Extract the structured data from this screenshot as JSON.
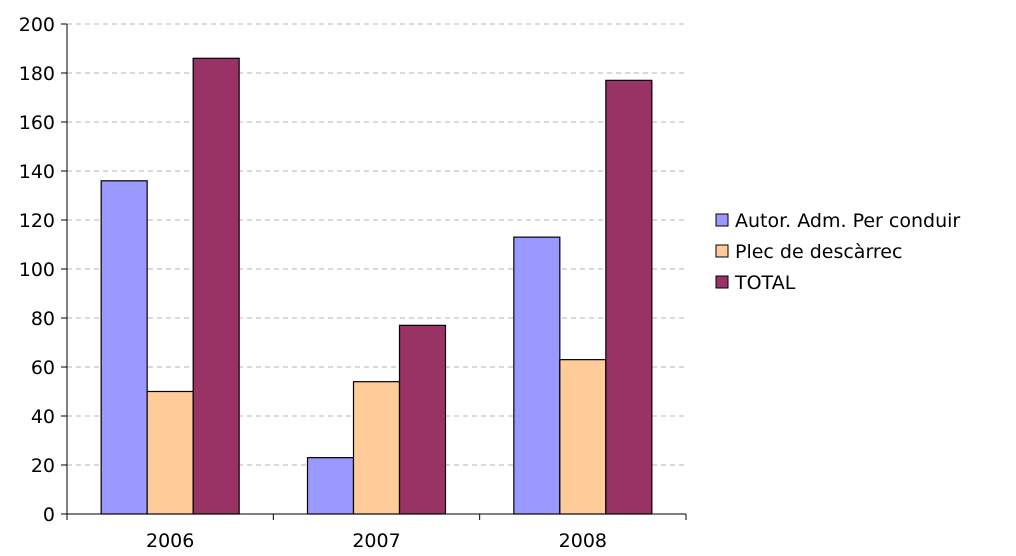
{
  "chart_data": {
    "type": "bar",
    "title": "",
    "xlabel": "",
    "ylabel": "",
    "categories": [
      "2006",
      "2007",
      "2008"
    ],
    "series": [
      {
        "name": "Autor. Adm. Per conduir",
        "values": [
          136,
          23,
          113
        ],
        "color": "#9999ff"
      },
      {
        "name": "Plec de descàrrec",
        "values": [
          50,
          54,
          63
        ],
        "color": "#ffcc99"
      },
      {
        "name": "TOTAL",
        "values": [
          186,
          77,
          177
        ],
        "color": "#993366"
      }
    ],
    "ylim": [
      0,
      200
    ],
    "yticks": [
      "0",
      "20",
      "40",
      "60",
      "80",
      "100",
      "120",
      "140",
      "160",
      "180",
      "200"
    ],
    "grid": true,
    "legend_position": "right"
  }
}
